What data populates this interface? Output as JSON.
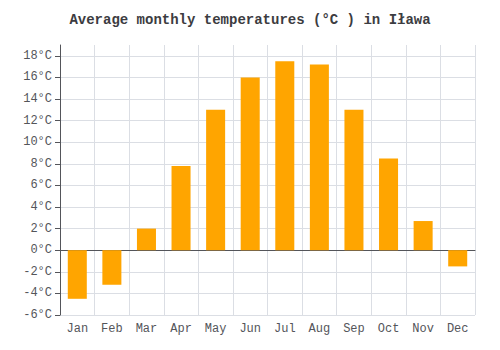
{
  "chart_data": {
    "type": "bar",
    "title": "Average monthly temperatures (°C ) in Iława",
    "categories": [
      "Jan",
      "Feb",
      "Mar",
      "Apr",
      "May",
      "Jun",
      "Jul",
      "Aug",
      "Sep",
      "Oct",
      "Nov",
      "Dec"
    ],
    "values": [
      -4.5,
      -3.2,
      2.0,
      7.8,
      13.0,
      16.0,
      17.5,
      17.2,
      13.0,
      8.5,
      2.7,
      -1.5
    ],
    "color": "#FFA500",
    "ylim": [
      -6,
      19
    ],
    "yticks": [
      {
        "value": -6,
        "label": "-6°C"
      },
      {
        "value": -4,
        "label": "-4°C"
      },
      {
        "value": -2,
        "label": "-2°C"
      },
      {
        "value": 0,
        "label": "0°C"
      },
      {
        "value": 2,
        "label": "2°C"
      },
      {
        "value": 4,
        "label": "4°C"
      },
      {
        "value": 6,
        "label": "6°C"
      },
      {
        "value": 8,
        "label": "8°C"
      },
      {
        "value": 10,
        "label": "10°C"
      },
      {
        "value": 12,
        "label": "12°C"
      },
      {
        "value": 14,
        "label": "14°C"
      },
      {
        "value": 16,
        "label": "16°C"
      },
      {
        "value": 18,
        "label": "18°C"
      }
    ],
    "grid": true
  }
}
